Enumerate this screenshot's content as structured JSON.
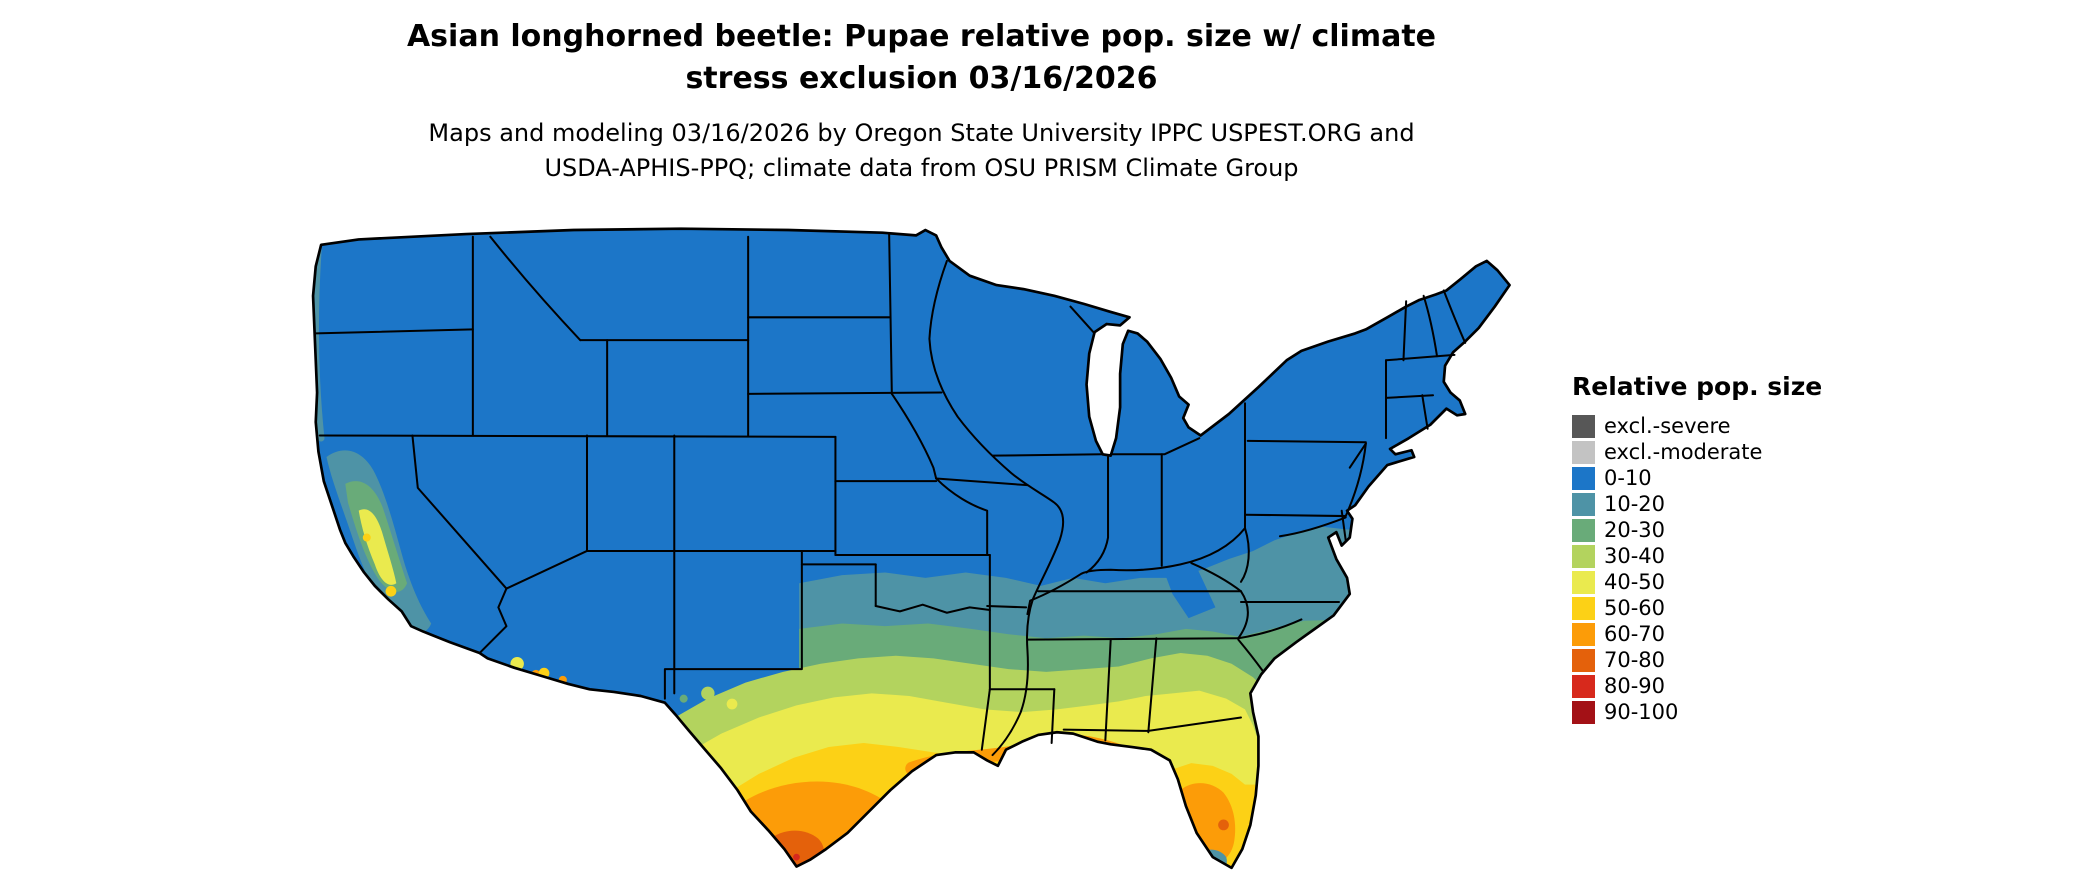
{
  "title": {
    "line1": "Asian longhorned beetle: Pupae relative pop. size w/ climate",
    "line2": "stress exclusion 03/16/2026"
  },
  "subtitle": {
    "line1": "Maps and modeling 03/16/2026 by Oregon State University IPPC USPEST.ORG and",
    "line2": "USDA-APHIS-PPQ; climate data from OSU PRISM Climate Group"
  },
  "legend": {
    "title": "Relative pop. size",
    "items": [
      {
        "label": "excl.-severe",
        "palette_key": "excl_severe"
      },
      {
        "label": "excl.-moderate",
        "palette_key": "excl_moderate"
      },
      {
        "label": "0-10",
        "palette_key": "b0_10"
      },
      {
        "label": "10-20",
        "palette_key": "b10_20"
      },
      {
        "label": "20-30",
        "palette_key": "b20_30"
      },
      {
        "label": "30-40",
        "palette_key": "b30_40"
      },
      {
        "label": "40-50",
        "palette_key": "b40_50"
      },
      {
        "label": "50-60",
        "palette_key": "b50_60"
      },
      {
        "label": "60-70",
        "palette_key": "b60_70"
      },
      {
        "label": "70-80",
        "palette_key": "b70_80"
      },
      {
        "label": "80-90",
        "palette_key": "b80_90"
      },
      {
        "label": "90-100",
        "palette_key": "b90_100"
      }
    ]
  },
  "palette": {
    "excl_severe": "#575757",
    "excl_moderate": "#c3c3c3",
    "b0_10": "#1c76c8",
    "b10_20": "#4e93a6",
    "b20_30": "#69ab79",
    "b30_40": "#b3d35e",
    "b40_50": "#eaea4e",
    "b50_60": "#fcd116",
    "b60_70": "#fc9c08",
    "b70_80": "#e4610b",
    "b80_90": "#d7291c",
    "b90_100": "#a31116"
  }
}
